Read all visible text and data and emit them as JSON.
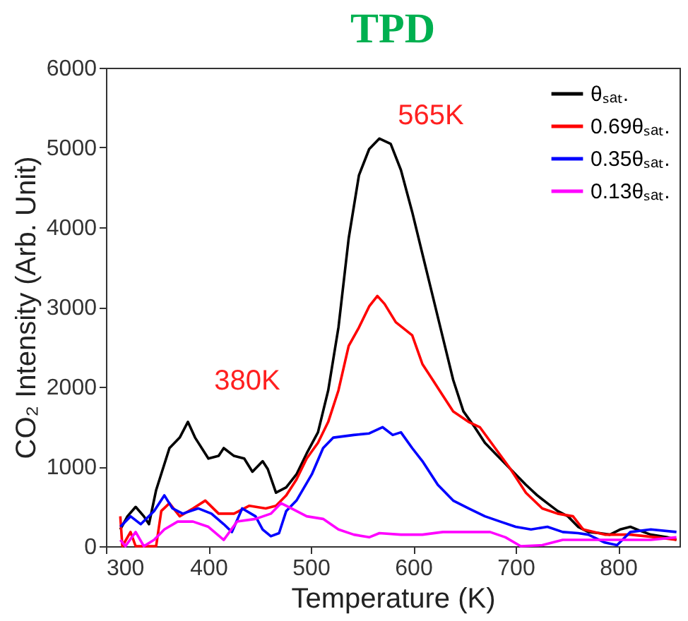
{
  "chart_data": {
    "type": "line",
    "title": "TPD",
    "xlabel": "Temperature (K)",
    "ylabel": "CO₂ Intensity (Arb. Unit)",
    "xlim": [
      300,
      860
    ],
    "xticks": [
      300,
      400,
      500,
      600,
      700,
      800
    ],
    "ylim": [
      0,
      6000
    ],
    "yticks": [
      0,
      1000,
      2000,
      3000,
      4000,
      5000,
      6000
    ],
    "grid": false,
    "legend": "top right",
    "marker": "none",
    "line_style": "solid",
    "annotations": [
      "380K",
      "565K"
    ],
    "series": [
      {
        "name": "θₛₐₜ.",
        "color": "#000000",
        "x": [
          314,
          321,
          329,
          337,
          342,
          349,
          362,
          372,
          380,
          387,
          400,
          410,
          415,
          425,
          435,
          443,
          453,
          458,
          466,
          476,
          486,
          496,
          507,
          517,
          527,
          537,
          547,
          557,
          567,
          578,
          588,
          599,
          609,
          619,
          629,
          639,
          649,
          660,
          670,
          680,
          690,
          700,
          710,
          721,
          731,
          741,
          751,
          761,
          771,
          782,
          792,
          802,
          812,
          822,
          832,
          848,
          857
        ],
        "values": [
          210,
          375,
          493,
          375,
          276,
          704,
          1230,
          1362,
          1559,
          1362,
          1099,
          1132,
          1230,
          1132,
          1099,
          934,
          1066,
          967,
          671,
          737,
          901,
          1164,
          1428,
          1954,
          2743,
          3862,
          4651,
          4980,
          5112,
          5046,
          4717,
          4191,
          3664,
          3138,
          2612,
          2086,
          1691,
          1493,
          1296,
          1164,
          1033,
          901,
          770,
          638,
          539,
          441,
          375,
          243,
          178,
          164,
          145,
          210,
          243,
          191,
          145,
          112,
          79
        ]
      },
      {
        "name": "0.69θₛₐₜ.",
        "color": "#ff0000",
        "x": [
          314,
          316,
          324,
          329,
          339,
          349,
          354,
          362,
          372,
          385,
          397,
          410,
          425,
          440,
          456,
          466,
          476,
          486,
          496,
          507,
          517,
          527,
          537,
          547,
          557,
          565,
          572,
          583,
          599,
          609,
          619,
          629,
          639,
          654,
          665,
          680,
          695,
          710,
          726,
          741,
          756,
          766,
          787,
          812,
          837,
          857
        ],
        "values": [
          375,
          0,
          178,
          0,
          0,
          0,
          441,
          539,
          375,
          474,
          572,
          408,
          408,
          507,
          474,
          507,
          638,
          836,
          1099,
          1296,
          1559,
          1954,
          2513,
          2743,
          3007,
          3138,
          3039,
          2809,
          2645,
          2283,
          2086,
          1888,
          1691,
          1559,
          1493,
          1230,
          967,
          671,
          474,
          408,
          375,
          210,
          145,
          145,
          112,
          79
        ]
      },
      {
        "name": "0.35θₛₐₜ.",
        "color": "#0000ff",
        "x": [
          314,
          324,
          334,
          347,
          357,
          365,
          375,
          390,
          403,
          415,
          423,
          433,
          446,
          453,
          461,
          469,
          476,
          486,
          501,
          512,
          522,
          542,
          557,
          570,
          580,
          588,
          599,
          609,
          624,
          639,
          654,
          670,
          685,
          700,
          715,
          731,
          746,
          761,
          771,
          787,
          799,
          812,
          832,
          857
        ],
        "values": [
          243,
          375,
          276,
          441,
          638,
          474,
          408,
          474,
          408,
          276,
          178,
          474,
          375,
          210,
          125,
          164,
          441,
          572,
          901,
          1230,
          1362,
          1395,
          1414,
          1493,
          1395,
          1428,
          1230,
          1066,
          770,
          572,
          474,
          375,
          309,
          243,
          210,
          243,
          178,
          164,
          145,
          46,
          13,
          178,
          210,
          178
        ]
      },
      {
        "name": "0.13θₛₐₜ.",
        "color": "#ff00ff",
        "x": [
          314,
          319,
          329,
          337,
          347,
          357,
          370,
          385,
          400,
          415,
          428,
          446,
          461,
          471,
          481,
          496,
          512,
          527,
          542,
          557,
          567,
          588,
          609,
          629,
          649,
          675,
          690,
          705,
          726,
          746,
          776,
          802,
          832,
          857
        ],
        "values": [
          79,
          0,
          178,
          0,
          79,
          210,
          309,
          309,
          243,
          79,
          309,
          342,
          408,
          539,
          474,
          375,
          342,
          210,
          145,
          112,
          164,
          145,
          145,
          178,
          178,
          178,
          112,
          0,
          13,
          79,
          79,
          79,
          79,
          112
        ]
      }
    ]
  }
}
